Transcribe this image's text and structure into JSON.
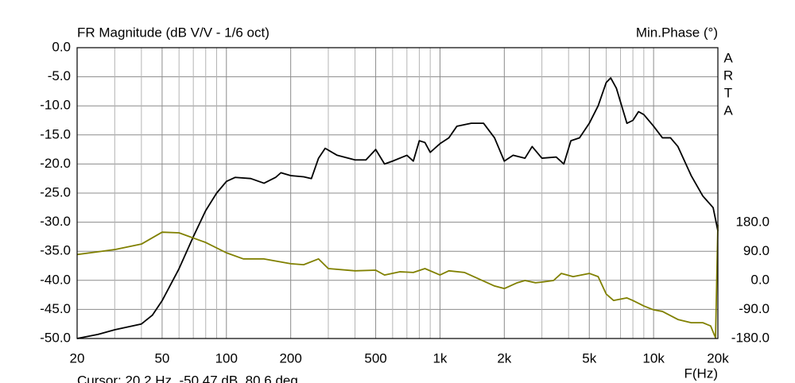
{
  "chart_data": {
    "type": "line",
    "title": "FR Magnitude (dB V/V - 1/6 oct)",
    "y2_title": "Min.Phase (°)",
    "brand": "ARTA",
    "x_label": "F(Hz)",
    "cursor_text": "Cursor: 20.2 Hz, -50.47 dB, 80.6 deg",
    "xscale": "log",
    "grid": true,
    "xlim": [
      20,
      20000
    ],
    "xticks": [
      20,
      50,
      100,
      200,
      500,
      {
        "value": 1000,
        "label": "1k"
      },
      {
        "value": 2000,
        "label": "2k"
      },
      {
        "value": 5000,
        "label": "5k"
      },
      {
        "value": 10000,
        "label": "10k"
      },
      {
        "value": 20000,
        "label": "20k"
      }
    ],
    "xgrid": [
      30,
      40,
      60,
      70,
      80,
      90,
      300,
      400,
      600,
      700,
      800,
      900,
      3000,
      4000,
      6000,
      7000,
      8000,
      9000
    ],
    "ylim": [
      -50,
      0
    ],
    "yticks": [
      {
        "value": 0,
        "label": "0.0"
      },
      {
        "value": -5,
        "label": "-5.0"
      },
      {
        "value": -10,
        "label": "-10.0"
      },
      {
        "value": -15,
        "label": "-15.0"
      },
      {
        "value": -20,
        "label": "-20.0"
      },
      {
        "value": -25,
        "label": "-25.0"
      },
      {
        "value": -30,
        "label": "-30.0"
      },
      {
        "value": -35,
        "label": "-35.0"
      },
      {
        "value": -40,
        "label": "-40.0"
      },
      {
        "value": -45,
        "label": "-45.0"
      },
      {
        "value": -50,
        "label": "-50.0"
      }
    ],
    "y2lim": [
      -180,
      180
    ],
    "y2ticks": [
      {
        "value": 180,
        "label": "180.0"
      },
      {
        "value": 90,
        "label": "90.0"
      },
      {
        "value": 0,
        "label": "0.0"
      },
      {
        "value": -90,
        "label": "-90.0"
      },
      {
        "value": -180,
        "label": "-180.0"
      }
    ],
    "series": [
      {
        "name": "Magnitude",
        "color": "#000000",
        "x": [
          20,
          25,
          30,
          40,
          45,
          50,
          60,
          70,
          80,
          90,
          100,
          110,
          130,
          150,
          170,
          180,
          200,
          230,
          250,
          270,
          290,
          330,
          400,
          450,
          500,
          550,
          600,
          700,
          750,
          800,
          850,
          900,
          1000,
          1100,
          1200,
          1400,
          1600,
          1800,
          2000,
          2200,
          2500,
          2700,
          3000,
          3500,
          3800,
          4100,
          4500,
          5000,
          5500,
          6000,
          6300,
          6700,
          7500,
          8000,
          8500,
          9000,
          10000,
          11000,
          12000,
          13000,
          15000,
          17000,
          19000,
          20000
        ],
        "values": [
          -50,
          -49.3,
          -48.5,
          -47.5,
          -46,
          -43.5,
          -38,
          -32.5,
          -28,
          -25,
          -23,
          -22.3,
          -22.5,
          -23.3,
          -22.3,
          -21.5,
          -22,
          -22.2,
          -22.5,
          -19,
          -17.3,
          -18.5,
          -19.3,
          -19.3,
          -17.5,
          -20,
          -19.5,
          -18.5,
          -19.5,
          -16,
          -16.3,
          -18,
          -16.5,
          -15.5,
          -13.5,
          -13,
          -13,
          -15.5,
          -19.5,
          -18.5,
          -19,
          -17,
          -19,
          -18.8,
          -20,
          -16,
          -15.5,
          -13,
          -10,
          -6,
          -5.2,
          -7,
          -13,
          -12.5,
          -11,
          -11.5,
          -13.5,
          -15.5,
          -15.5,
          -17,
          -22,
          -25.5,
          -27.5,
          -31.5
        ]
      },
      {
        "name": "Min.Phase",
        "color": "#808000",
        "axis": "y2",
        "x": [
          20,
          30,
          40,
          50,
          60,
          80,
          100,
          120,
          150,
          200,
          230,
          270,
          300,
          400,
          500,
          550,
          650,
          750,
          850,
          1000,
          1100,
          1300,
          1800,
          2000,
          2300,
          2500,
          2800,
          3000,
          3400,
          3700,
          4200,
          5000,
          5500,
          6000,
          6500,
          7500,
          8000,
          9000,
          10000,
          11000,
          13000,
          15000,
          17000,
          18500,
          19500,
          20000
        ],
        "values": [
          80.6,
          96,
          113,
          150,
          148,
          118,
          86,
          67,
          67,
          52,
          49,
          67,
          37,
          30,
          32,
          17,
          27,
          25,
          37,
          17,
          30,
          25,
          -17,
          -25,
          -7,
          0,
          -7,
          -5,
          0,
          22,
          12,
          22,
          12,
          -42,
          -62,
          -54,
          -62,
          -79,
          -91,
          -96,
          -121,
          -131,
          -131,
          -141,
          -178,
          173
        ]
      }
    ]
  }
}
